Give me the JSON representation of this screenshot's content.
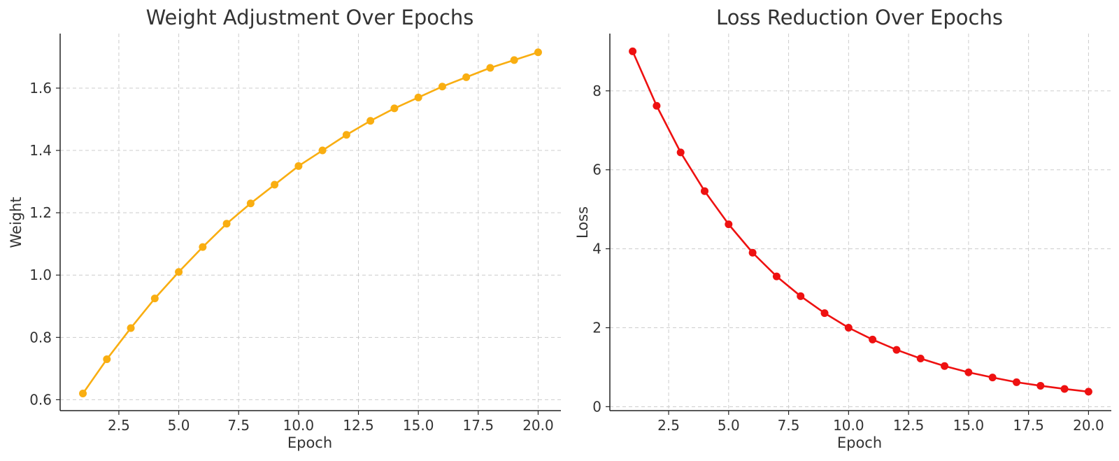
{
  "chart_data": [
    {
      "type": "line",
      "title": "Weight Adjustment Over Epochs",
      "xlabel": "Epoch",
      "ylabel": "Weight",
      "xlim": [
        0.05,
        20.95
      ],
      "ylim": [
        0.565,
        1.775
      ],
      "x_ticks": [
        2.5,
        5.0,
        7.5,
        10.0,
        12.5,
        15.0,
        17.5,
        20.0
      ],
      "x_tick_labels": [
        "2.5",
        "5.0",
        "7.5",
        "10.0",
        "12.5",
        "15.0",
        "17.5",
        "20.0"
      ],
      "y_ticks": [
        0.6,
        0.8,
        1.0,
        1.2,
        1.4,
        1.6
      ],
      "y_tick_labels": [
        "0.6",
        "0.8",
        "1.0",
        "1.2",
        "1.4",
        "1.6"
      ],
      "grid": true,
      "color": "#F9AE11",
      "series": [
        {
          "x": [
            1,
            2,
            3,
            4,
            5,
            6,
            7,
            8,
            9,
            10,
            11,
            12,
            13,
            14,
            15,
            16,
            17,
            18,
            19,
            20
          ],
          "values": [
            0.62,
            0.73,
            0.83,
            0.925,
            1.01,
            1.09,
            1.165,
            1.23,
            1.29,
            1.35,
            1.4,
            1.45,
            1.495,
            1.535,
            1.57,
            1.605,
            1.635,
            1.665,
            1.69,
            1.715
          ]
        }
      ]
    },
    {
      "type": "line",
      "title": "Loss Reduction Over Epochs",
      "xlabel": "Epoch",
      "ylabel": "Loss",
      "xlim": [
        0.05,
        20.95
      ],
      "ylim": [
        -0.1,
        9.45
      ],
      "x_ticks": [
        2.5,
        5.0,
        7.5,
        10.0,
        12.5,
        15.0,
        17.5,
        20.0
      ],
      "x_tick_labels": [
        "2.5",
        "5.0",
        "7.5",
        "10.0",
        "12.5",
        "15.0",
        "17.5",
        "20.0"
      ],
      "y_ticks": [
        0,
        2,
        4,
        6,
        8
      ],
      "y_tick_labels": [
        "0",
        "2",
        "4",
        "6",
        "8"
      ],
      "grid": true,
      "color": "#EE1111",
      "series": [
        {
          "x": [
            1,
            2,
            3,
            4,
            5,
            6,
            7,
            8,
            9,
            10,
            11,
            12,
            13,
            14,
            15,
            16,
            17,
            18,
            19,
            20
          ],
          "values": [
            9.0,
            7.62,
            6.44,
            5.46,
            4.62,
            3.9,
            3.3,
            2.8,
            2.37,
            2.0,
            1.7,
            1.44,
            1.22,
            1.03,
            0.87,
            0.74,
            0.62,
            0.53,
            0.45,
            0.38
          ]
        }
      ]
    }
  ]
}
